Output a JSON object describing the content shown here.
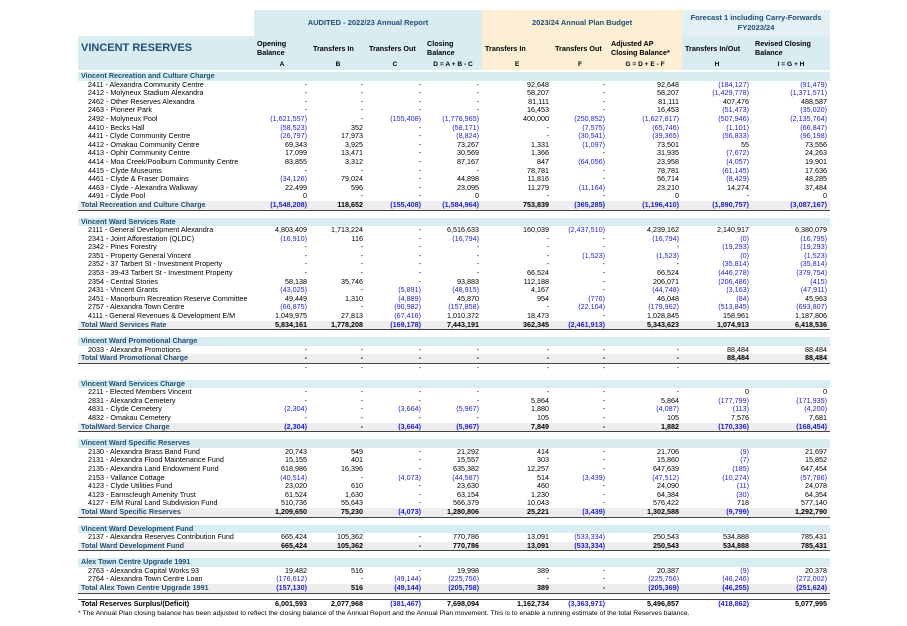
{
  "header": {
    "group_audited": "AUDITED - 2022/23 Annual Report",
    "group_annual_plan": "2023/24 Annual Plan Budget",
    "group_forecast": "Forecast 1 including Carry-Forwards FY2023/24",
    "title": "VINCENT RESERVES",
    "columns": [
      "Opening Balance",
      "Transfers In",
      "Transfers Out",
      "Closing Balance",
      "Transfers In",
      "Transfers Out",
      "Adjusted AP Closing Balance*",
      "Transfers In/Out",
      "Revised Closing Balance"
    ],
    "letters": [
      "A",
      "B",
      "C",
      "D = A + B - C",
      "E",
      "F",
      "G = D + E - F",
      "H",
      "I = G + H"
    ]
  },
  "sections": [
    {
      "title": "Vincent Recreation and Culture Charge",
      "rows": [
        [
          "2411 - Alexandra Community Centre",
          "-",
          "-",
          "-",
          "-",
          "92,648",
          "-",
          "92,648",
          "(184,127)",
          "(91,479)"
        ],
        [
          "2412 - Molyneux Stadium Alexandra",
          "-",
          "-",
          "-",
          "-",
          "58,207",
          "-",
          "58,207",
          "(1,429,778)",
          "(1,371,571)"
        ],
        [
          "2462 - Other Reserves Alexandra",
          "-",
          "-",
          "-",
          "-",
          "81,111",
          "-",
          "81,111",
          "407,476",
          "488,587"
        ],
        [
          "2463 - Pioneer Park",
          "-",
          "-",
          "-",
          "-",
          "16,453",
          "-",
          "16,453",
          "(51,473)",
          "(35,020)"
        ],
        [
          "2492 - Molyneux Pool",
          "(1,621,557)",
          "-",
          "(155,408)",
          "(1,776,965)",
          "400,000",
          "(250,852)",
          "(1,627,817)",
          "(507,946)",
          "(2,135,764)"
        ],
        [
          "4410 - Becks Hall",
          "(58,523)",
          "352",
          "-",
          "(58,171)",
          "-",
          "(7,575)",
          "(65,746)",
          "(1,101)",
          "(66,847)"
        ],
        [
          "4411 - Clyde Community Centre",
          "(26,797)",
          "17,973",
          "-",
          "(8,824)",
          "-",
          "(30,541)",
          "(39,365)",
          "(56,833)",
          "(96,198)"
        ],
        [
          "4412 - Omakau Community Centre",
          "69,343",
          "3,925",
          "-",
          "73,267",
          "1,331",
          "(1,097)",
          "73,501",
          "55",
          "73,556"
        ],
        [
          "4413 - Ophir Community Centre",
          "17,099",
          "13,471",
          "-",
          "30,569",
          "1,366",
          "-",
          "31,935",
          "(7,672)",
          "24,263"
        ],
        [
          "4414 - Moa Creek/Poolburn Community Centre",
          "83,855",
          "3,312",
          "-",
          "87,167",
          "847",
          "(64,056)",
          "23,958",
          "(4,057)",
          "19,901"
        ],
        [
          "4415 - Clyde Museums",
          "-",
          "-",
          "-",
          "-",
          "78,781",
          "-",
          "78,781",
          "(61,145)",
          "17,636"
        ],
        [
          "4461 - Clyde & Fraser Domains",
          "(34,126)",
          "79,024",
          "-",
          "44,898",
          "11,816",
          "-",
          "56,714",
          "(8,429)",
          "48,285"
        ],
        [
          "4463 - Clyde - Alexandra Walkway",
          "22,499",
          "596",
          "-",
          "23,095",
          "11,279",
          "(11,164)",
          "23,210",
          "14,274",
          "37,484"
        ],
        [
          "4491 - Clyde Pool",
          "0",
          "-",
          "-",
          "0",
          "-",
          "-",
          "0",
          "-",
          "0"
        ]
      ],
      "total": [
        "Total Recreation and Culture Charge",
        "(1,548,208)",
        "118,652",
        "(155,408)",
        "(1,584,964)",
        "753,839",
        "(365,285)",
        "(1,196,410)",
        "(1,890,757)",
        "(3,087,167)"
      ]
    },
    {
      "title": "Vincent Ward Services Rate",
      "rows": [
        [
          "2111 - General Development Alexandra",
          "4,803,409",
          "1,713,224",
          "-",
          "6,516,633",
          "160,039",
          "(2,437,510)",
          "4,239,162",
          "2,140,917",
          "6,380,079"
        ],
        [
          "2341 - Joint Afforestation (QLDC)",
          "(16,910)",
          "116",
          "-",
          "(16,794)",
          "-",
          "-",
          "(16,794)",
          "(0)",
          "(16,795)"
        ],
        [
          "2342 - Pines Forestry",
          "-",
          "-",
          "-",
          "-",
          "-",
          "-",
          "-",
          "(19,293)",
          "(19,293)"
        ],
        [
          "2351 - Property General Vincent",
          "-",
          "-",
          "-",
          "-",
          "-",
          "(1,523)",
          "(1,523)",
          "(0)",
          "(1,523)"
        ],
        [
          "2352 - 37 Tarbert St - Investment Property",
          "-",
          "-",
          "-",
          "-",
          "-",
          "-",
          "-",
          "(35,814)",
          "(35,814)"
        ],
        [
          "2353 - 39-43 Tarbert St - Investment Property",
          "-",
          "-",
          "-",
          "-",
          "66,524",
          "-",
          "66,524",
          "(446,278)",
          "(379,754)"
        ],
        [
          "2354 - Central Stories",
          "58,138",
          "35,746",
          "-",
          "93,883",
          "112,188",
          "-",
          "206,071",
          "(206,486)",
          "(415)"
        ],
        [
          "2431 - Vincent Grants",
          "(43,025)",
          "-",
          "(5,891)",
          "(48,915)",
          "4,167",
          "-",
          "(44,748)",
          "(3,163)",
          "(47,911)"
        ],
        [
          "2451 - Manorburn Recreation Reserve Committee",
          "49,449",
          "1,310",
          "(4,889)",
          "45,870",
          "954",
          "(776)",
          "46,048",
          "(84)",
          "45,963"
        ],
        [
          "2757 - Alexandra Town Centre",
          "(66,875)",
          "-",
          "(90,982)",
          "(157,858)",
          "-",
          "(22,104)",
          "(179,962)",
          "(513,845)",
          "(693,807)"
        ],
        [
          "4111 - General Revenues & Development E/M",
          "1,049,975",
          "27,813",
          "(67,416)",
          "1,010,372",
          "18,473",
          "-",
          "1,028,845",
          "158,961",
          "1,187,806"
        ]
      ],
      "total": [
        "Total Ward Services Rate",
        "5,834,161",
        "1,778,208",
        "(169,178)",
        "7,443,191",
        "362,345",
        "(2,461,913)",
        "5,343,623",
        "1,074,913",
        "6,418,536"
      ]
    },
    {
      "title": "Vincent Ward Promotional Charge",
      "rows": [
        [
          "2033 - Alexandra Promotions",
          "-",
          "-",
          "-",
          "-",
          "-",
          "-",
          "-",
          "88,484",
          "88,484"
        ]
      ],
      "total": [
        "Total Ward Promotional Charge",
        "-",
        "-",
        "-",
        "-",
        "-",
        "-",
        "-",
        "88,484",
        "88,484"
      ],
      "after_total": [
        "",
        "-",
        "-",
        "-",
        "-",
        "-",
        "-",
        "-",
        "",
        ""
      ]
    },
    {
      "title": "Vincent Ward Services Charge",
      "rows": [
        [
          "2211 - Elected Members Vincent",
          "-",
          "-",
          "-",
          "-",
          "-",
          "-",
          "-",
          "0",
          "0"
        ],
        [
          "2831 - Alexandra Cemetery",
          "-",
          "-",
          "-",
          "-",
          "5,864",
          "-",
          "5,864",
          "(177,799)",
          "(171,935)"
        ],
        [
          "4831 - Clyde Cemetery",
          "(2,304)",
          "-",
          "(3,664)",
          "(5,967)",
          "1,880",
          "-",
          "(4,087)",
          "(113)",
          "(4,200)"
        ],
        [
          "4832 - Omakau Cemetery",
          "-",
          "-",
          "-",
          "-",
          "105",
          "-",
          "105",
          "7,576",
          "7,681"
        ]
      ],
      "total": [
        "TotalWard Service Charge",
        "(2,304)",
        "-",
        "(3,664)",
        "(5,967)",
        "7,849",
        "-",
        "1,882",
        "(170,336)",
        "(168,454)"
      ]
    },
    {
      "title": "Vincent Ward Specific Reserves",
      "rows": [
        [
          "2130 - Alexandra Brass Band Fund",
          "20,743",
          "549",
          "-",
          "21,292",
          "414",
          "-",
          "21,706",
          "(9)",
          "21,697"
        ],
        [
          "2131 - Alexandra Flood Maintenance Fund",
          "15,155",
          "401",
          "-",
          "15,557",
          "303",
          "-",
          "15,860",
          "(7)",
          "15,852"
        ],
        [
          "2135 - Alexandra Land Endowment Fund",
          "618,986",
          "16,396",
          "-",
          "635,382",
          "12,257",
          "-",
          "647,639",
          "(185)",
          "647,454"
        ],
        [
          "2153 - Vallance Cottage",
          "(40,514)",
          "-",
          "(4,073)",
          "(44,587)",
          "514",
          "(3,439)",
          "(47,512)",
          "(10,274)",
          "(57,786)"
        ],
        [
          "4123 - Clyde Utilities Fund",
          "23,020",
          "610",
          "-",
          "23,630",
          "460",
          "-",
          "24,090",
          "(11)",
          "24,078"
        ],
        [
          "4123 - Earnscleugh Amenity Trust",
          "61,524",
          "1,630",
          "-",
          "63,154",
          "1,230",
          "-",
          "64,384",
          "(30)",
          "64,354"
        ],
        [
          "4127 - E/M Rural Land Subdivision Fund",
          "510,736",
          "55,643",
          "-",
          "566,379",
          "10,043",
          "-",
          "576,422",
          "718",
          "577,140"
        ]
      ],
      "total": [
        "Total Ward Specific Reserves",
        "1,209,650",
        "75,230",
        "(4,073)",
        "1,280,806",
        "25,221",
        "(3,439)",
        "1,302,588",
        "(9,799)",
        "1,292,790"
      ]
    },
    {
      "title": "Vincent Ward Development Fund",
      "rows": [
        [
          "2137 - Alexandra Reserves Contribution Fund",
          "665,424",
          "105,362",
          "-",
          "770,786",
          "13,091",
          "(533,334)",
          "250,543",
          "534,888",
          "785,431"
        ]
      ],
      "total": [
        "Total Ward Development Fund",
        "665,424",
        "105,362",
        "-",
        "770,786",
        "13,091",
        "(533,334)",
        "250,543",
        "534,888",
        "785,431"
      ]
    },
    {
      "title": "Alex Town Centre Upgrade 1991",
      "rows": [
        [
          "2763 - Alexandra Capital Works 93",
          "19,482",
          "516",
          "-",
          "19,998",
          "389",
          "-",
          "20,387",
          "(9)",
          "20,378"
        ],
        [
          "2764 - Alexandra Town Centre Loan",
          "(176,612)",
          "-",
          "(49,144)",
          "(225,756)",
          "-",
          "-",
          "(225,756)",
          "(46,246)",
          "(272,002)"
        ]
      ],
      "total": [
        "Total Alex Town Centre Upgrade 1991",
        "(157,130)",
        "516",
        "(49,144)",
        "(205,758)",
        "389",
        "-",
        "(205,369)",
        "(46,255)",
        "(251,624)"
      ]
    }
  ],
  "grand_total": [
    "Total Reserves Surplus/(Deficit)",
    "6,001,593",
    "2,077,968",
    "(381,467)",
    "7,698,094",
    "1,162,734",
    "(3,363,971)",
    "5,496,857",
    "(418,862)",
    "5,077,995"
  ],
  "footnote": "* The Annual Plan closing balance has been adjusted to reflect the closing balance of the Annual Report and the Annual Plan movement. This is to enable a running estimate of the total Reserves balance.",
  "colors": {
    "header_fill": "#d9ecf2",
    "annual_plan_fill": "#fcefd3",
    "total_fill": "#eeeeee",
    "heading_text": "#1f4e79",
    "negative_text": "#1f1fcc"
  }
}
